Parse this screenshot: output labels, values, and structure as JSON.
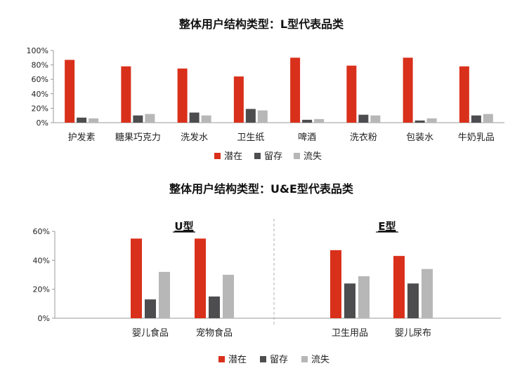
{
  "colors": {
    "potential": "#d9301c",
    "retained": "#4d4d4f",
    "lost": "#b7b7b7",
    "axis": "#999999",
    "text": "#222222",
    "divider": "#b0b0b0"
  },
  "legend_labels": [
    "潜在",
    "留存",
    "流失"
  ],
  "chart_data": [
    {
      "type": "bar",
      "title": "整体用户结构类型：L型代表品类",
      "categories": [
        "护发素",
        "糖果巧克力",
        "洗发水",
        "卫生纸",
        "啤酒",
        "洗衣粉",
        "包装水",
        "牛奶乳品"
      ],
      "series": [
        {
          "name": "潜在",
          "values": [
            87,
            78,
            75,
            64,
            90,
            79,
            90,
            78
          ]
        },
        {
          "name": "留存",
          "values": [
            7,
            10,
            14,
            19,
            4,
            11,
            3,
            10
          ]
        },
        {
          "name": "流失",
          "values": [
            6,
            12,
            10,
            17,
            5,
            10,
            6,
            12
          ]
        }
      ],
      "ylim": [
        0,
        100
      ],
      "yticks": [
        "0%",
        "20%",
        "40%",
        "60%",
        "80%",
        "100%"
      ],
      "legend": "bottom-center",
      "grid": false
    },
    {
      "type": "bar",
      "title": "整体用户结构类型：U&E型代表品类",
      "groups": [
        {
          "label": "U型",
          "categories": [
            "婴儿食品",
            "宠物食品"
          ]
        },
        {
          "label": "E型",
          "categories": [
            "卫生用品",
            "婴儿尿布"
          ]
        }
      ],
      "categories": [
        "婴儿食品",
        "宠物食品",
        "卫生用品",
        "婴儿尿布"
      ],
      "series": [
        {
          "name": "潜在",
          "values": [
            55,
            55,
            47,
            43
          ]
        },
        {
          "name": "留存",
          "values": [
            13,
            15,
            24,
            24
          ]
        },
        {
          "name": "流失",
          "values": [
            32,
            30,
            29,
            34
          ]
        }
      ],
      "ylim": [
        0,
        60
      ],
      "yticks": [
        "0%",
        "20%",
        "40%",
        "60%"
      ],
      "legend": "bottom-center",
      "grid": false
    }
  ]
}
